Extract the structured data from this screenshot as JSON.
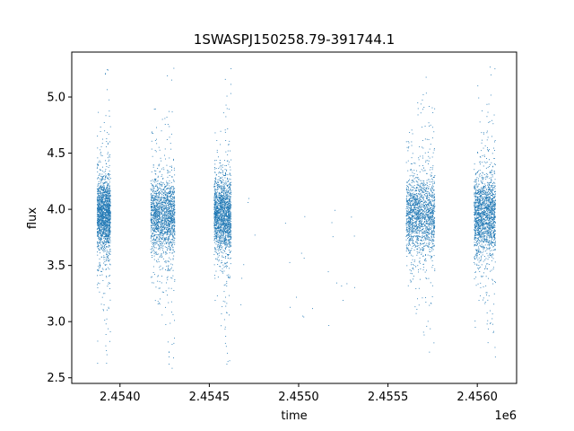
{
  "chart_data": {
    "type": "scatter",
    "title": "1SWASPJ150258.79-391744.1",
    "xlabel": "time",
    "ylabel": "flux",
    "x_offset_label": "1e6",
    "xlim": [
      2453730,
      2456220
    ],
    "ylim": [
      2.45,
      5.4
    ],
    "xticks": [
      2.454,
      2.4545,
      2.455,
      2.4555,
      2.456
    ],
    "xtick_labels": [
      "2.4540",
      "2.4545",
      "2.4550",
      "2.4555",
      "2.4560"
    ],
    "yticks": [
      2.5,
      3.0,
      3.5,
      4.0,
      4.5,
      5.0
    ],
    "ytick_labels": [
      "2.5",
      "3.0",
      "3.5",
      "4.0",
      "4.5",
      "5.0"
    ],
    "grid": false,
    "marker_color": "#1f77b4",
    "segments": [
      {
        "x_start": 2453870,
        "x_end": 2453945,
        "flux_center": 3.95,
        "flux_spread": 0.22,
        "outlier_min": 2.62,
        "outlier_max": 5.25,
        "density": "high"
      },
      {
        "x_start": 2454170,
        "x_end": 2454305,
        "flux_center": 3.95,
        "flux_spread": 0.22,
        "outlier_min": 2.58,
        "outlier_max": 5.27,
        "density": "high"
      },
      {
        "x_start": 2454525,
        "x_end": 2454620,
        "flux_center": 3.95,
        "flux_spread": 0.22,
        "outlier_min": 2.62,
        "outlier_max": 5.27,
        "density": "high"
      },
      {
        "x_start": 2454660,
        "x_end": 2455370,
        "flux_center": 3.7,
        "flux_spread": 0.3,
        "outlier_min": 2.85,
        "outlier_max": 4.2,
        "density": "sparse"
      },
      {
        "x_start": 2455600,
        "x_end": 2455760,
        "flux_center": 3.95,
        "flux_spread": 0.24,
        "outlier_min": 2.62,
        "outlier_max": 5.25,
        "density": "high"
      },
      {
        "x_start": 2455980,
        "x_end": 2456100,
        "flux_center": 3.95,
        "flux_spread": 0.24,
        "outlier_min": 2.58,
        "outlier_max": 5.27,
        "density": "high"
      }
    ]
  }
}
